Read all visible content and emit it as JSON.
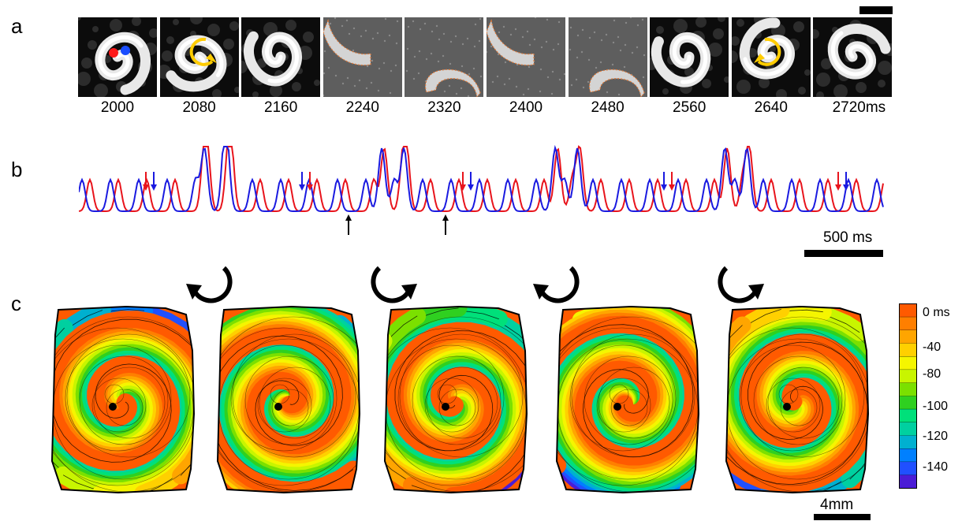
{
  "panels": {
    "a": "a",
    "b": "b",
    "c": "c"
  },
  "panel_a": {
    "frames": [
      {
        "time": "2000",
        "kind": "spiral",
        "marker": "dots"
      },
      {
        "time": "2080",
        "kind": "spiral",
        "marker": "cw-arrow"
      },
      {
        "time": "2160",
        "kind": "spiral",
        "marker": "none"
      },
      {
        "time": "2240",
        "kind": "wave",
        "marker": "none"
      },
      {
        "time": "2320",
        "kind": "wave",
        "marker": "none"
      },
      {
        "time": "2400",
        "kind": "wave",
        "marker": "none"
      },
      {
        "time": "2480",
        "kind": "wave",
        "marker": "none"
      },
      {
        "time": "2560",
        "kind": "spiral",
        "marker": "none"
      },
      {
        "time": "2640",
        "kind": "spiral",
        "marker": "ccw-arrow"
      },
      {
        "time": "2720ms",
        "kind": "spiral",
        "marker": "none"
      }
    ],
    "colors": {
      "red_dot": "#ff1a1a",
      "blue_dot": "#1a4dff",
      "arrow": "#ffcc00",
      "wavefront": "#e07a3a"
    }
  },
  "panel_b": {
    "scalebar_label": "500 ms",
    "colors": {
      "red": "#e8141c",
      "blue": "#1a1ae0",
      "black": "#000000"
    },
    "arrow_pairs": [
      {
        "order": "red-blue"
      },
      {
        "order": "blue-red"
      },
      {
        "order": "red-blue"
      },
      {
        "order": "blue-red"
      },
      {
        "order": "red-blue"
      }
    ],
    "black_arrows": 2
  },
  "panel_c": {
    "rotations": [
      "counterclockwise",
      "clockwise",
      "counterclockwise",
      "clockwise"
    ],
    "maps": [
      {
        "chirality": "cw"
      },
      {
        "chirality": "ccw"
      },
      {
        "chirality": "cw"
      },
      {
        "chirality": "ccw"
      },
      {
        "chirality": "cw"
      }
    ],
    "scalebar_label": "4mm",
    "colorbar": {
      "ticks": [
        "0 ms",
        "-40",
        "-80",
        "-100",
        "-120",
        "-140"
      ],
      "colors": [
        "#ff5a00",
        "#ff7f00",
        "#ffa500",
        "#ffd000",
        "#f5f500",
        "#c8f500",
        "#7be000",
        "#2fd020",
        "#00e07a",
        "#00d0a0",
        "#00b0d0",
        "#0080ff",
        "#2050ff",
        "#4b1cd6"
      ]
    }
  }
}
